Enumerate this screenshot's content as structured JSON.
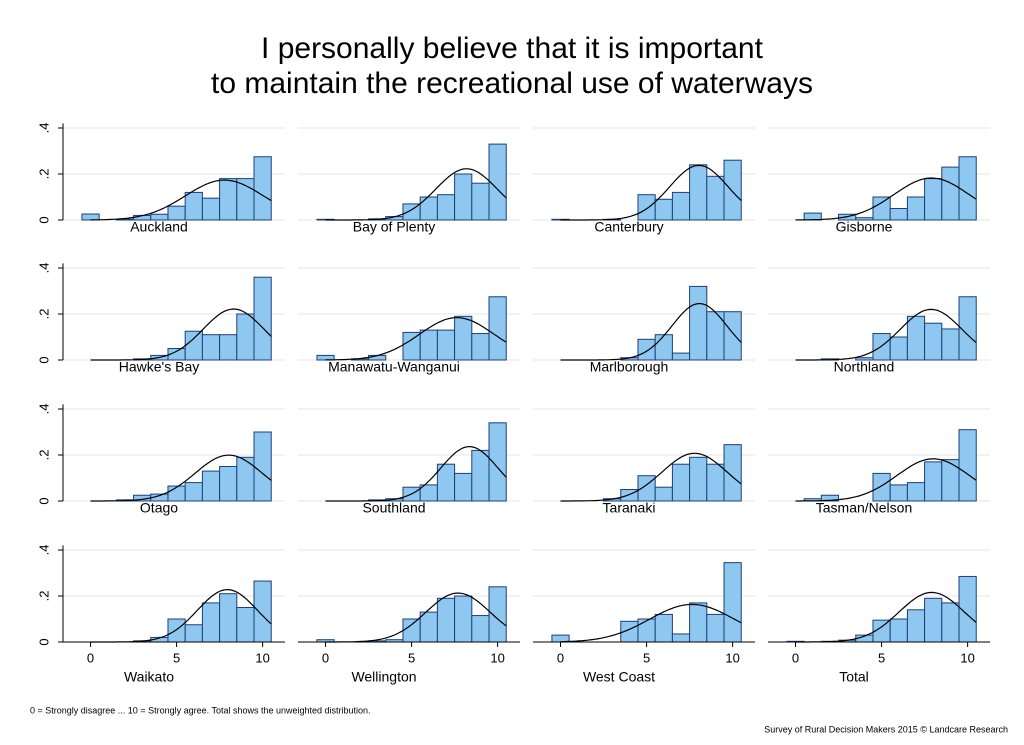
{
  "title": [
    "I personally believe that it is important",
    "to maintain the recreational use of waterways"
  ],
  "note": "0 = Strongly disagree ... 10 = Strongly agree. Total shows the unweighted distribution.",
  "source": "Survey of Rural Decision Makers 2015 © Landcare Research",
  "chart_data": [
    {
      "type": "histogram",
      "title": "Auckland",
      "bins": [
        -0.5,
        0.5,
        1.5,
        2.5,
        3.5,
        4.5,
        5.5,
        6.5,
        7.5,
        8.5,
        9.5,
        10.5
      ],
      "values": [
        0.026,
        0,
        0.004,
        0.02,
        0.025,
        0.06,
        0.12,
        0.095,
        0.18,
        0.18,
        0.275
      ],
      "color": "#8ec8f0",
      "xlim": [
        -1.6,
        11.3
      ],
      "ylim": [
        0,
        0.42
      ],
      "yticks": [
        0,
        {
          "value": 0.2,
          "label": ".2"
        },
        {
          "value": 0.4,
          "label": ".4"
        }
      ],
      "grid": true
    },
    {
      "type": "histogram",
      "title": "Bay of Plenty",
      "bins": [
        -0.5,
        0.5,
        1.5,
        2.5,
        3.5,
        4.5,
        5.5,
        6.5,
        7.5,
        8.5,
        9.5,
        10.5
      ],
      "values": [
        0.003,
        0,
        0,
        0.005,
        0.015,
        0.07,
        0.1,
        0.11,
        0.2,
        0.16,
        0.33
      ],
      "color": "#8ec8f0",
      "xlim": [
        -1.6,
        11.3
      ],
      "ylim": [
        0,
        0.42
      ],
      "yticks": [
        0,
        0.2,
        0.4
      ],
      "grid": true
    },
    {
      "type": "histogram",
      "title": "Canterbury",
      "bins": [
        -0.5,
        0.5,
        1.5,
        2.5,
        3.5,
        4.5,
        5.5,
        6.5,
        7.5,
        8.5,
        9.5,
        10.5
      ],
      "values": [
        0.003,
        0,
        0,
        0.003,
        0,
        0.11,
        0.09,
        0.12,
        0.24,
        0.19,
        0.26
      ],
      "color": "#8ec8f0",
      "xlim": [
        -1.6,
        11.3
      ],
      "ylim": [
        0,
        0.42
      ],
      "yticks": [
        0,
        0.2,
        0.4
      ],
      "grid": true
    },
    {
      "type": "histogram",
      "title": "Gisborne",
      "bins": [
        -0.5,
        0.5,
        1.5,
        2.5,
        3.5,
        4.5,
        5.5,
        6.5,
        7.5,
        8.5,
        9.5,
        10.5
      ],
      "values": [
        0,
        0.03,
        0,
        0.025,
        0.01,
        0.1,
        0.05,
        0.1,
        0.18,
        0.23,
        0.275
      ],
      "color": "#8ec8f0",
      "xlim": [
        -1.6,
        11.3
      ],
      "ylim": [
        0,
        0.42
      ],
      "yticks": [
        0,
        0.2,
        0.4
      ],
      "grid": true
    },
    {
      "type": "histogram",
      "title": "Hawke's Bay",
      "bins": [
        -0.5,
        0.5,
        1.5,
        2.5,
        3.5,
        4.5,
        5.5,
        6.5,
        7.5,
        8.5,
        9.5,
        10.5
      ],
      "values": [
        0,
        0,
        0,
        0.005,
        0.02,
        0.05,
        0.125,
        0.11,
        0.11,
        0.2,
        0.36
      ],
      "color": "#8ec8f0",
      "xlim": [
        -1.6,
        11.3
      ],
      "ylim": [
        0,
        0.42
      ],
      "yticks": [
        0,
        {
          "value": 0.2,
          "label": ".2"
        },
        {
          "value": 0.4,
          "label": ".4"
        }
      ],
      "grid": true
    },
    {
      "type": "histogram",
      "title": "Manawatu-Wanganui",
      "bins": [
        -0.5,
        0.5,
        1.5,
        2.5,
        3.5,
        4.5,
        5.5,
        6.5,
        7.5,
        8.5,
        9.5,
        10.5
      ],
      "values": [
        0.02,
        0,
        0.005,
        0.02,
        0,
        0.12,
        0.13,
        0.13,
        0.19,
        0.115,
        0.275
      ],
      "color": "#8ec8f0",
      "xlim": [
        -1.6,
        11.3
      ],
      "ylim": [
        0,
        0.42
      ],
      "yticks": [
        0,
        0.2,
        0.4
      ],
      "grid": true
    },
    {
      "type": "histogram",
      "title": "Marlborough",
      "bins": [
        -0.5,
        0.5,
        1.5,
        2.5,
        3.5,
        4.5,
        5.5,
        6.5,
        7.5,
        8.5,
        9.5,
        10.5
      ],
      "values": [
        0,
        0,
        0,
        0,
        0.01,
        0.09,
        0.11,
        0.03,
        0.32,
        0.21,
        0.21
      ],
      "color": "#8ec8f0",
      "xlim": [
        -1.6,
        11.3
      ],
      "ylim": [
        0,
        0.42
      ],
      "yticks": [
        0,
        0.2,
        0.4
      ],
      "grid": true
    },
    {
      "type": "histogram",
      "title": "Northland",
      "bins": [
        -0.5,
        0.5,
        1.5,
        2.5,
        3.5,
        4.5,
        5.5,
        6.5,
        7.5,
        8.5,
        9.5,
        10.5
      ],
      "values": [
        0,
        0,
        0.005,
        0,
        0.01,
        0.115,
        0.1,
        0.19,
        0.16,
        0.135,
        0.275
      ],
      "color": "#8ec8f0",
      "xlim": [
        -1.6,
        11.3
      ],
      "ylim": [
        0,
        0.42
      ],
      "yticks": [
        0,
        0.2,
        0.4
      ],
      "grid": true
    },
    {
      "type": "histogram",
      "title": "Otago",
      "bins": [
        -0.5,
        0.5,
        1.5,
        2.5,
        3.5,
        4.5,
        5.5,
        6.5,
        7.5,
        8.5,
        9.5,
        10.5
      ],
      "values": [
        0,
        0,
        0.005,
        0.025,
        0.03,
        0.065,
        0.08,
        0.13,
        0.15,
        0.19,
        0.3
      ],
      "color": "#8ec8f0",
      "xlim": [
        -1.6,
        11.3
      ],
      "ylim": [
        0,
        0.42
      ],
      "yticks": [
        0,
        {
          "value": 0.2,
          "label": ".2"
        },
        {
          "value": 0.4,
          "label": ".4"
        }
      ],
      "grid": true
    },
    {
      "type": "histogram",
      "title": "Southland",
      "bins": [
        -0.5,
        0.5,
        1.5,
        2.5,
        3.5,
        4.5,
        5.5,
        6.5,
        7.5,
        8.5,
        9.5,
        10.5
      ],
      "values": [
        0,
        0,
        0,
        0.005,
        0.01,
        0.06,
        0.07,
        0.16,
        0.12,
        0.22,
        0.34
      ],
      "color": "#8ec8f0",
      "xlim": [
        -1.6,
        11.3
      ],
      "ylim": [
        0,
        0.42
      ],
      "yticks": [
        0,
        0.2,
        0.4
      ],
      "grid": true
    },
    {
      "type": "histogram",
      "title": "Taranaki",
      "bins": [
        -0.5,
        0.5,
        1.5,
        2.5,
        3.5,
        4.5,
        5.5,
        6.5,
        7.5,
        8.5,
        9.5,
        10.5
      ],
      "values": [
        0,
        0,
        0,
        0.01,
        0.05,
        0.11,
        0.06,
        0.16,
        0.19,
        0.16,
        0.245
      ],
      "color": "#8ec8f0",
      "xlim": [
        -1.6,
        11.3
      ],
      "ylim": [
        0,
        0.42
      ],
      "yticks": [
        0,
        0.2,
        0.4
      ],
      "grid": true
    },
    {
      "type": "histogram",
      "title": "Tasman/Nelson",
      "bins": [
        -0.5,
        0.5,
        1.5,
        2.5,
        3.5,
        4.5,
        5.5,
        6.5,
        7.5,
        8.5,
        9.5,
        10.5
      ],
      "values": [
        0,
        0.01,
        0.025,
        0,
        0,
        0.12,
        0.07,
        0.08,
        0.17,
        0.18,
        0.31
      ],
      "color": "#8ec8f0",
      "xlim": [
        -1.6,
        11.3
      ],
      "ylim": [
        0,
        0.42
      ],
      "yticks": [
        0,
        0.2,
        0.4
      ],
      "grid": true
    },
    {
      "type": "histogram",
      "title": "Waikato",
      "bins": [
        -0.5,
        0.5,
        1.5,
        2.5,
        3.5,
        4.5,
        5.5,
        6.5,
        7.5,
        8.5,
        9.5,
        10.5
      ],
      "values": [
        0,
        0,
        0,
        0.005,
        0.02,
        0.1,
        0.075,
        0.17,
        0.21,
        0.15,
        0.265
      ],
      "color": "#8ec8f0",
      "xlim": [
        -1.6,
        11.3
      ],
      "ylim": [
        0,
        0.42
      ],
      "yticks": [
        0,
        {
          "value": 0.2,
          "label": ".2"
        },
        {
          "value": 0.4,
          "label": ".4"
        }
      ],
      "xticks": [
        0,
        5,
        10
      ],
      "grid": true
    },
    {
      "type": "histogram",
      "title": "Wellington",
      "bins": [
        -0.5,
        0.5,
        1.5,
        2.5,
        3.5,
        4.5,
        5.5,
        6.5,
        7.5,
        8.5,
        9.5,
        10.5
      ],
      "values": [
        0.01,
        0,
        0,
        0.005,
        0.01,
        0.1,
        0.13,
        0.19,
        0.2,
        0.115,
        0.24
      ],
      "color": "#8ec8f0",
      "xlim": [
        -1.6,
        11.3
      ],
      "ylim": [
        0,
        0.42
      ],
      "yticks": [
        0,
        0.2,
        0.4
      ],
      "xticks": [
        0,
        5,
        10
      ],
      "grid": true
    },
    {
      "type": "histogram",
      "title": "West Coast",
      "bins": [
        -0.5,
        0.5,
        1.5,
        2.5,
        3.5,
        4.5,
        5.5,
        6.5,
        7.5,
        8.5,
        9.5,
        10.5
      ],
      "values": [
        0.03,
        0,
        0,
        0,
        0.09,
        0.1,
        0.12,
        0.035,
        0.17,
        0.12,
        0.345
      ],
      "color": "#8ec8f0",
      "xlim": [
        -1.6,
        11.3
      ],
      "ylim": [
        0,
        0.42
      ],
      "yticks": [
        0,
        0.2,
        0.4
      ],
      "xticks": [
        0,
        5,
        10
      ],
      "grid": true
    },
    {
      "type": "histogram",
      "title": "Total",
      "bins": [
        -0.5,
        0.5,
        1.5,
        2.5,
        3.5,
        4.5,
        5.5,
        6.5,
        7.5,
        8.5,
        9.5,
        10.5
      ],
      "values": [
        0.003,
        0,
        0.003,
        0.008,
        0.03,
        0.095,
        0.1,
        0.14,
        0.19,
        0.17,
        0.285
      ],
      "color": "#8ec8f0",
      "xlim": [
        -1.6,
        11.3
      ],
      "ylim": [
        0,
        0.42
      ],
      "yticks": [
        0,
        0.2,
        0.4
      ],
      "xticks": [
        0,
        5,
        10
      ],
      "grid": true
    }
  ]
}
